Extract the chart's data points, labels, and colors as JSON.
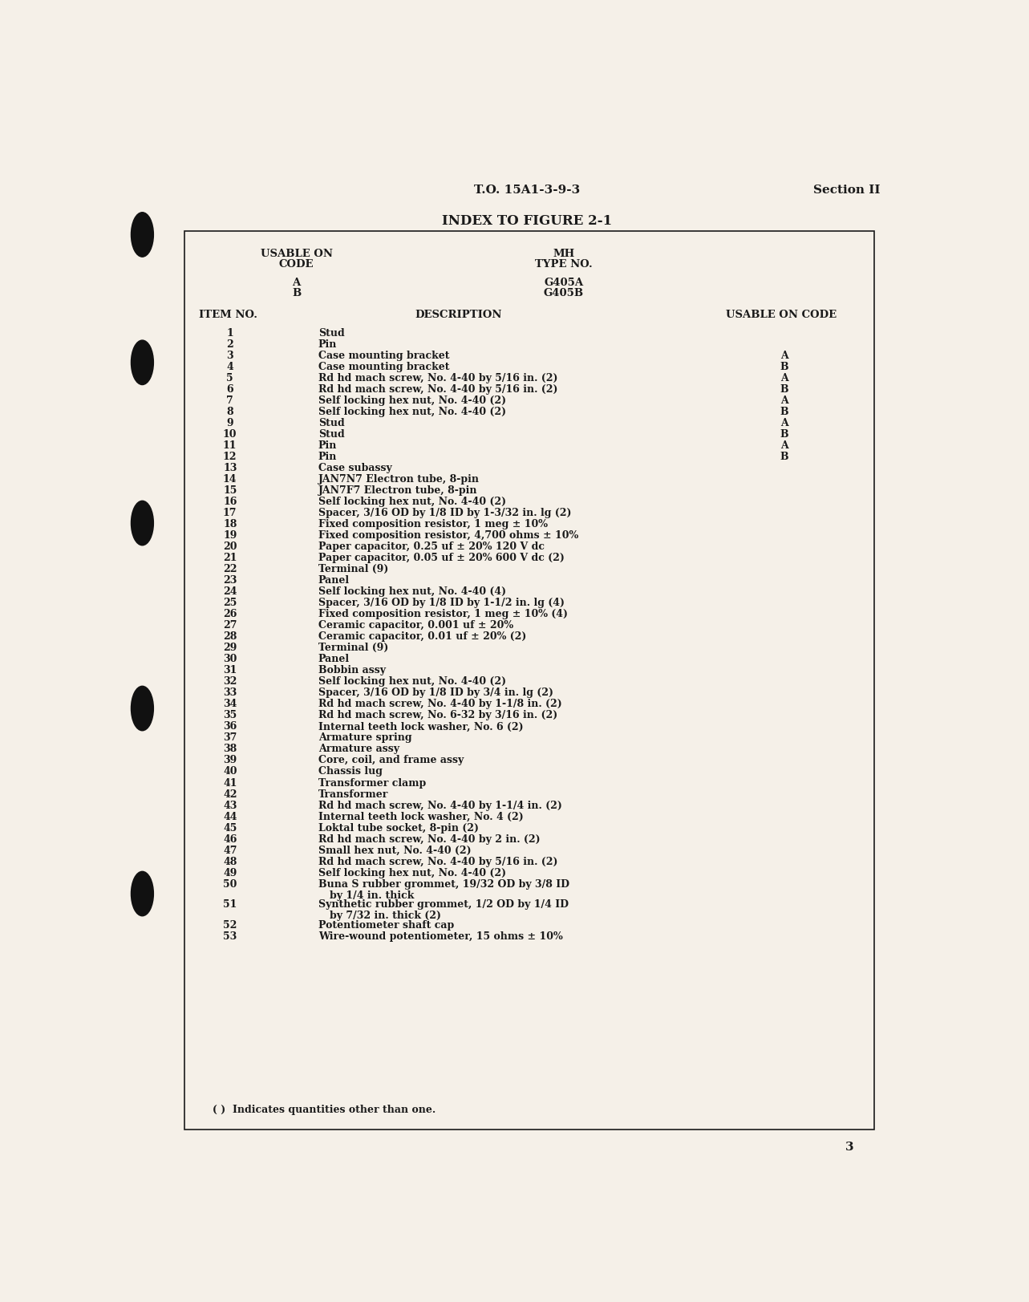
{
  "bg_color": "#f5f0e8",
  "header_left": "T.O. 15A1-3-9-3",
  "header_right": "Section II",
  "title": "INDEX TO FIGURE 2-1",
  "col_item": "ITEM NO.",
  "col_desc": "DESCRIPTION",
  "col_usable": "USABLE ON CODE",
  "footer_note": "( )  Indicates quantities other than one.",
  "page_num": "3",
  "items": [
    {
      "num": "1",
      "desc": "Stud",
      "desc2": "",
      "code": ""
    },
    {
      "num": "2",
      "desc": "Pin",
      "desc2": "",
      "code": ""
    },
    {
      "num": "3",
      "desc": "Case mounting bracket",
      "desc2": "",
      "code": "A"
    },
    {
      "num": "4",
      "desc": "Case mounting bracket",
      "desc2": "",
      "code": "B"
    },
    {
      "num": "5",
      "desc": "Rd hd mach screw, No. 4-40 by 5/16 in. (2)",
      "desc2": "",
      "code": "A"
    },
    {
      "num": "6",
      "desc": "Rd hd mach screw, No. 4-40 by 5/16 in. (2)",
      "desc2": "",
      "code": "B"
    },
    {
      "num": "7",
      "desc": "Self locking hex nut, No. 4-40 (2)",
      "desc2": "",
      "code": "A"
    },
    {
      "num": "8",
      "desc": "Self locking hex nut, No. 4-40 (2)",
      "desc2": "",
      "code": "B"
    },
    {
      "num": "9",
      "desc": "Stud",
      "desc2": "",
      "code": "A"
    },
    {
      "num": "10",
      "desc": "Stud",
      "desc2": "",
      "code": "B"
    },
    {
      "num": "11",
      "desc": "Pin",
      "desc2": "",
      "code": "A"
    },
    {
      "num": "12",
      "desc": "Pin",
      "desc2": "",
      "code": "B"
    },
    {
      "num": "13",
      "desc": "Case subassy",
      "desc2": "",
      "code": ""
    },
    {
      "num": "14",
      "desc": "JAN7N7 Electron tube, 8-pin",
      "desc2": "",
      "code": ""
    },
    {
      "num": "15",
      "desc": "JAN7F7 Electron tube, 8-pin",
      "desc2": "",
      "code": ""
    },
    {
      "num": "16",
      "desc": "Self locking hex nut, No. 4-40 (2)",
      "desc2": "",
      "code": ""
    },
    {
      "num": "17",
      "desc": "Spacer, 3/16 OD by 1/8 ID by 1-3/32 in. lg (2)",
      "desc2": "",
      "code": ""
    },
    {
      "num": "18",
      "desc": "Fixed composition resistor, 1 meg ± 10%",
      "desc2": "",
      "code": ""
    },
    {
      "num": "19",
      "desc": "Fixed composition resistor, 4,700 ohms ± 10%",
      "desc2": "",
      "code": ""
    },
    {
      "num": "20",
      "desc": "Paper capacitor, 0.25 uf ± 20% 120 V dc",
      "desc2": "",
      "code": ""
    },
    {
      "num": "21",
      "desc": "Paper capacitor, 0.05 uf ± 20% 600 V dc (2)",
      "desc2": "",
      "code": ""
    },
    {
      "num": "22",
      "desc": "Terminal (9)",
      "desc2": "",
      "code": ""
    },
    {
      "num": "23",
      "desc": "Panel",
      "desc2": "",
      "code": ""
    },
    {
      "num": "24",
      "desc": "Self locking hex nut, No. 4-40 (4)",
      "desc2": "",
      "code": ""
    },
    {
      "num": "25",
      "desc": "Spacer, 3/16 OD by 1/8 ID by 1-1/2 in. lg (4)",
      "desc2": "",
      "code": ""
    },
    {
      "num": "26",
      "desc": "Fixed composition resistor, 1 meg ± 10% (4)",
      "desc2": "",
      "code": ""
    },
    {
      "num": "27",
      "desc": "Ceramic capacitor, 0.001 uf ± 20%",
      "desc2": "",
      "code": ""
    },
    {
      "num": "28",
      "desc": "Ceramic capacitor, 0.01 uf ± 20% (2)",
      "desc2": "",
      "code": ""
    },
    {
      "num": "29",
      "desc": "Terminal (9)",
      "desc2": "",
      "code": ""
    },
    {
      "num": "30",
      "desc": "Panel",
      "desc2": "",
      "code": ""
    },
    {
      "num": "31",
      "desc": "Bobbin assy",
      "desc2": "",
      "code": ""
    },
    {
      "num": "32",
      "desc": "Self locking hex nut, No. 4-40 (2)",
      "desc2": "",
      "code": ""
    },
    {
      "num": "33",
      "desc": "Spacer, 3/16 OD by 1/8 ID by 3/4 in. lg (2)",
      "desc2": "",
      "code": ""
    },
    {
      "num": "34",
      "desc": "Rd hd mach screw, No. 4-40 by 1-1/8 in. (2)",
      "desc2": "",
      "code": ""
    },
    {
      "num": "35",
      "desc": "Rd hd mach screw, No. 6-32 by 3/16 in. (2)",
      "desc2": "",
      "code": ""
    },
    {
      "num": "36",
      "desc": "Internal teeth lock washer, No. 6 (2)",
      "desc2": "",
      "code": ""
    },
    {
      "num": "37",
      "desc": "Armature spring",
      "desc2": "",
      "code": ""
    },
    {
      "num": "38",
      "desc": "Armature assy",
      "desc2": "",
      "code": ""
    },
    {
      "num": "39",
      "desc": "Core, coil, and frame assy",
      "desc2": "",
      "code": ""
    },
    {
      "num": "40",
      "desc": "Chassis lug",
      "desc2": "",
      "code": ""
    },
    {
      "num": "41",
      "desc": "Transformer clamp",
      "desc2": "",
      "code": ""
    },
    {
      "num": "42",
      "desc": "Transformer",
      "desc2": "",
      "code": ""
    },
    {
      "num": "43",
      "desc": "Rd hd mach screw, No. 4-40 by 1-1/4 in. (2)",
      "desc2": "",
      "code": ""
    },
    {
      "num": "44",
      "desc": "Internal teeth lock washer, No. 4 (2)",
      "desc2": "",
      "code": ""
    },
    {
      "num": "45",
      "desc": "Loktal tube socket, 8-pin (2)",
      "desc2": "",
      "code": ""
    },
    {
      "num": "46",
      "desc": "Rd hd mach screw, No. 4-40 by 2 in. (2)",
      "desc2": "",
      "code": ""
    },
    {
      "num": "47",
      "desc": "Small hex nut, No. 4-40 (2)",
      "desc2": "",
      "code": ""
    },
    {
      "num": "48",
      "desc": "Rd hd mach screw, No. 4-40 by 5/16 in. (2)",
      "desc2": "",
      "code": ""
    },
    {
      "num": "49",
      "desc": "Self locking hex nut, No. 4-40 (2)",
      "desc2": "",
      "code": ""
    },
    {
      "num": "50",
      "desc": "Buna S rubber grommet, 19/32 OD by 3/8 ID",
      "desc2": "by 1/4 in. thick",
      "code": ""
    },
    {
      "num": "51",
      "desc": "Synthetic rubber grommet, 1/2 OD by 1/4 ID",
      "desc2": "by 7/32 in. thick (2)",
      "code": ""
    },
    {
      "num": "52",
      "desc": "Potentiometer shaft cap",
      "desc2": "",
      "code": ""
    },
    {
      "num": "53",
      "desc": "Wire-wound potentiometer, 15 ohms ± 10%",
      "desc2": "",
      "code": ""
    }
  ]
}
